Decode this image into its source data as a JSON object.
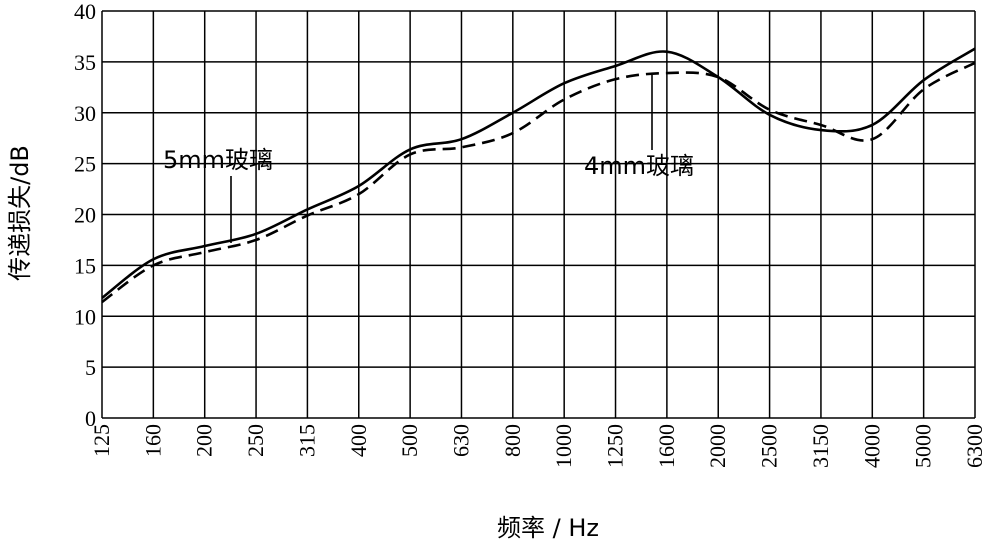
{
  "chart_data": {
    "type": "line",
    "xlabel": "频率 / Hz",
    "ylabel": "传递损失/dB",
    "categories": [
      "125",
      "160",
      "200",
      "250",
      "315",
      "400",
      "500",
      "630",
      "800",
      "1000",
      "1250",
      "1600",
      "2000",
      "2500",
      "3150",
      "4000",
      "5000",
      "6300"
    ],
    "ylim": [
      0,
      40
    ],
    "yticks": [
      0,
      5,
      10,
      15,
      20,
      25,
      30,
      35,
      40
    ],
    "grid": true,
    "series": [
      {
        "name": "5mm玻璃",
        "style": "solid",
        "values": [
          11.8,
          15.6,
          16.9,
          18.1,
          20.5,
          22.8,
          26.4,
          27.4,
          30.0,
          32.9,
          34.6,
          36.0,
          33.5,
          29.8,
          28.3,
          28.8,
          33.2,
          36.3
        ]
      },
      {
        "name": "4mm玻璃",
        "style": "dashed",
        "values": [
          11.4,
          15.0,
          16.3,
          17.5,
          19.9,
          22.0,
          25.9,
          26.6,
          28.0,
          31.3,
          33.3,
          33.9,
          33.5,
          30.3,
          28.8,
          27.4,
          32.3,
          34.9
        ]
      }
    ],
    "annotations": [
      {
        "text": "5mm玻璃",
        "series": 0
      },
      {
        "text": "4mm玻璃",
        "series": 1
      }
    ]
  }
}
